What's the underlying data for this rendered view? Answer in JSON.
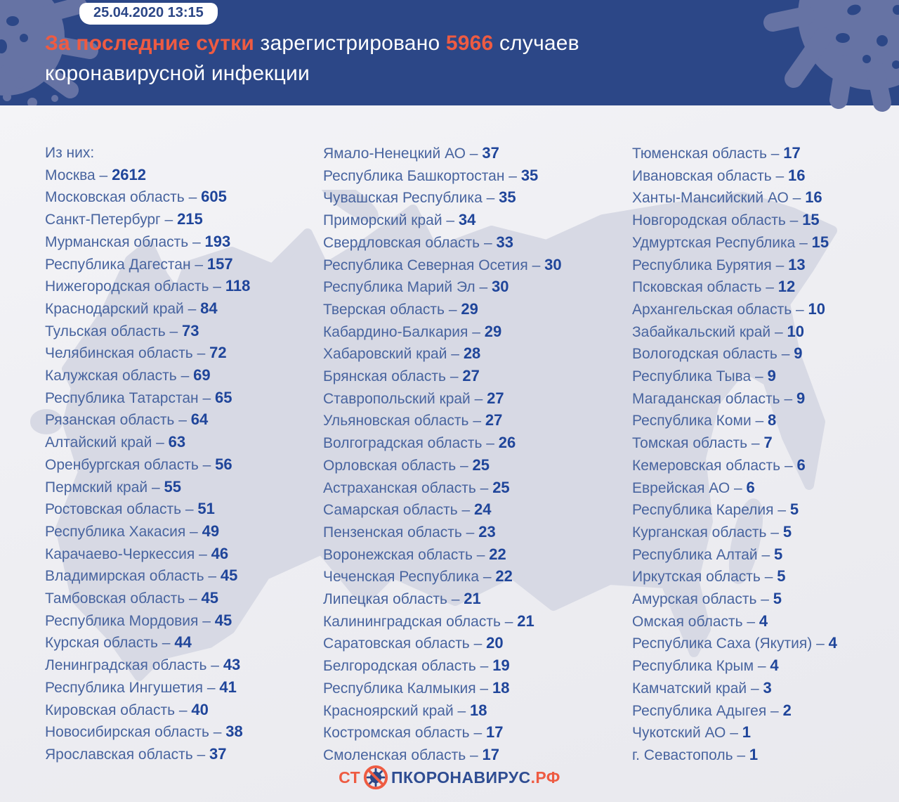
{
  "header": {
    "timestamp": "25.04.2020 13:15",
    "title": {
      "accent": "За последние сутки",
      "mid": " зарегистрировано ",
      "number": "5966",
      "tail": " случаев",
      "line2": "коронавирусной инфекции"
    }
  },
  "list": {
    "separator": " – "
  },
  "columns": [
    {
      "items": [
        {
          "name": "Из них:"
        },
        {
          "name": "Москва",
          "value": "2612"
        },
        {
          "name": "Московская область",
          "value": "605"
        },
        {
          "name": "Санкт-Петербург",
          "value": "215"
        },
        {
          "name": "Мурманская область",
          "value": "193"
        },
        {
          "name": "Республика Дагестан",
          "value": "157"
        },
        {
          "name": "Нижегородская область",
          "value": "118"
        },
        {
          "name": "Краснодарский край",
          "value": "84"
        },
        {
          "name": "Тульская область",
          "value": "73"
        },
        {
          "name": "Челябинская область",
          "value": "72"
        },
        {
          "name": "Калужская область",
          "value": "69"
        },
        {
          "name": "Республика Татарстан",
          "value": "65"
        },
        {
          "name": "Рязанская область",
          "value": "64"
        },
        {
          "name": "Алтайский край",
          "value": "63"
        },
        {
          "name": "Оренбургская область",
          "value": "56"
        },
        {
          "name": "Пермский край",
          "value": "55"
        },
        {
          "name": "Ростовская область",
          "value": "51"
        },
        {
          "name": "Республика Хакасия",
          "value": "49"
        },
        {
          "name": "Карачаево-Черкессия",
          "value": "46"
        },
        {
          "name": "Владимирская область",
          "value": "45"
        },
        {
          "name": "Тамбовская область",
          "value": "45"
        },
        {
          "name": "Республика Мордовия",
          "value": "45"
        },
        {
          "name": "Курская область",
          "value": "44"
        },
        {
          "name": "Ленинградская область",
          "value": "43"
        },
        {
          "name": "Республика Ингушетия",
          "value": "41"
        },
        {
          "name": "Кировская область",
          "value": "40"
        },
        {
          "name": "Новосибирская область",
          "value": "38"
        },
        {
          "name": "Ярославская область",
          "value": "37"
        }
      ]
    },
    {
      "items": [
        {
          "name": "Ямало-Ненецкий АО",
          "value": "37"
        },
        {
          "name": "Республика Башкортостан",
          "value": "35"
        },
        {
          "name": "Чувашская Республика",
          "value": "35"
        },
        {
          "name": "Приморский край",
          "value": "34"
        },
        {
          "name": "Свердловская область",
          "value": "33"
        },
        {
          "name": "Республика Северная Осетия",
          "value": "30"
        },
        {
          "name": "Республика Марий Эл",
          "value": "30"
        },
        {
          "name": "Тверская область",
          "value": "29"
        },
        {
          "name": "Кабардино-Балкария",
          "value": "29"
        },
        {
          "name": "Хабаровский край",
          "value": "28"
        },
        {
          "name": "Брянская область",
          "value": "27"
        },
        {
          "name": "Ставропольский край",
          "value": "27"
        },
        {
          "name": "Ульяновская область",
          "value": "27"
        },
        {
          "name": "Волгоградская область",
          "value": "26"
        },
        {
          "name": "Орловская область",
          "value": "25"
        },
        {
          "name": "Астраханская область",
          "value": "25"
        },
        {
          "name": "Самарская область",
          "value": "24"
        },
        {
          "name": "Пензенская область",
          "value": "23"
        },
        {
          "name": "Воронежская область",
          "value": "22"
        },
        {
          "name": "Чеченская Республика",
          "value": "22"
        },
        {
          "name": "Липецкая область",
          "value": "21"
        },
        {
          "name": "Калининградская область",
          "value": "21"
        },
        {
          "name": "Саратовская область",
          "value": "20"
        },
        {
          "name": "Белгородская область",
          "value": "19"
        },
        {
          "name": "Республика Калмыкия",
          "value": "18"
        },
        {
          "name": "Красноярский край",
          "value": "18"
        },
        {
          "name": "Костромская область",
          "value": "17"
        },
        {
          "name": "Смоленская область",
          "value": "17"
        }
      ]
    },
    {
      "items": [
        {
          "name": "Тюменская область",
          "value": "17"
        },
        {
          "name": "Ивановская область",
          "value": "16"
        },
        {
          "name": "Ханты-Мансийский АО",
          "value": "16"
        },
        {
          "name": "Новгородская область",
          "value": "15"
        },
        {
          "name": "Удмуртская Республика",
          "value": "15"
        },
        {
          "name": "Республика Бурятия",
          "value": "13"
        },
        {
          "name": "Псковская область",
          "value": "12"
        },
        {
          "name": "Архангельская область",
          "value": "10"
        },
        {
          "name": "Забайкальский край",
          "value": "10"
        },
        {
          "name": "Вологодская область",
          "value": "9"
        },
        {
          "name": "Республика Тыва",
          "value": "9"
        },
        {
          "name": "Магаданская область",
          "value": "9"
        },
        {
          "name": "Республика Коми",
          "value": "8"
        },
        {
          "name": "Томская область",
          "value": "7"
        },
        {
          "name": "Кемеровская область",
          "value": "6"
        },
        {
          "name": "Еврейская АО",
          "value": "6"
        },
        {
          "name": "Республика Карелия",
          "value": "5"
        },
        {
          "name": "Курганская область",
          "value": "5"
        },
        {
          "name": "Республика Алтай",
          "value": "5"
        },
        {
          "name": "Иркутская область",
          "value": "5"
        },
        {
          "name": "Амурская область",
          "value": "5"
        },
        {
          "name": "Омская область",
          "value": "4"
        },
        {
          "name": "Республика Саха (Якутия)",
          "value": "4"
        },
        {
          "name": "Республика Крым",
          "value": "4"
        },
        {
          "name": "Камчатский край",
          "value": "3"
        },
        {
          "name": "Республика Адыгея",
          "value": "2"
        },
        {
          "name": "Чукотский АО",
          "value": "1"
        },
        {
          "name": "г. Севастополь",
          "value": "1"
        }
      ]
    }
  ],
  "footer": {
    "logo_st": "СТ",
    "logo_middle": "ПКОРОНАВИРУС",
    "logo_rf": ".РФ"
  },
  "colors": {
    "accent": "#ee5b42",
    "header_bg": "#2c4787",
    "name_color": "#48649f",
    "value_color": "#1f459a",
    "map_color": "#d7d9e4",
    "blob_color": "#6673a4",
    "logo_blue": "#2f4d92",
    "background": "#f0f0f3"
  }
}
